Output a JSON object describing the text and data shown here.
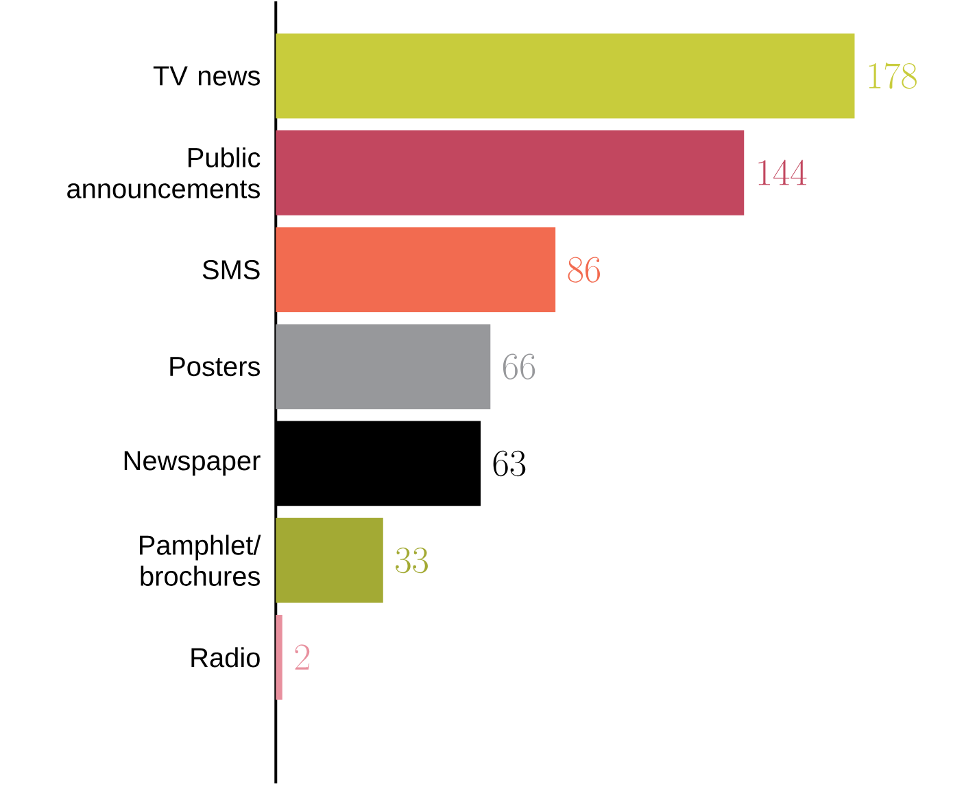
{
  "chart_data": {
    "type": "bar",
    "orientation": "horizontal",
    "categories": [
      "TV news",
      "Public announcements",
      "SMS",
      "Posters",
      "Newspaper",
      "Pamphlet/ brochures",
      "Radio"
    ],
    "values": [
      178,
      144,
      86,
      66,
      63,
      33,
      2
    ],
    "colors": [
      "#c8cc3c",
      "#c2475f",
      "#f26b50",
      "#97989b",
      "#000000",
      "#a3aa34",
      "#e8909e"
    ],
    "data_labels": true
  }
}
